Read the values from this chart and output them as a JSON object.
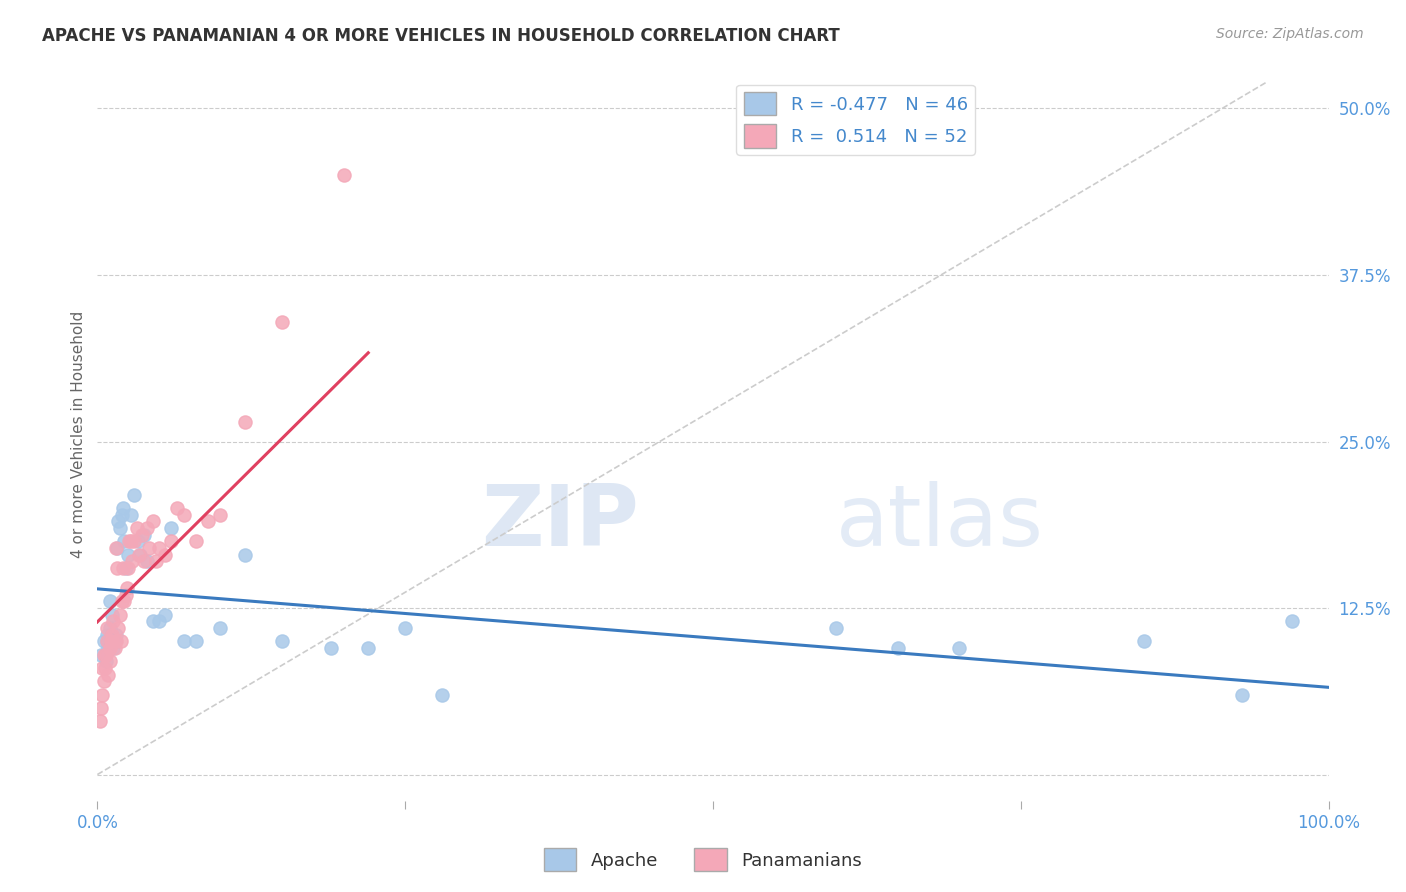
{
  "title": "APACHE VS PANAMANIAN 4 OR MORE VEHICLES IN HOUSEHOLD CORRELATION CHART",
  "source": "Source: ZipAtlas.com",
  "ylabel": "4 or more Vehicles in Household",
  "apache_R": -0.477,
  "apache_N": 46,
  "panamanian_R": 0.514,
  "panamanian_N": 52,
  "apache_color": "#a8c8e8",
  "panamanian_color": "#f4a8b8",
  "apache_line_color": "#3a7abf",
  "panamanian_line_color": "#e04060",
  "diagonal_color": "#cccccc",
  "xlim": [
    0,
    1.0
  ],
  "ylim": [
    -0.02,
    0.53
  ],
  "ytick_values": [
    0.0,
    0.125,
    0.25,
    0.375,
    0.5
  ],
  "apache_scatter_x": [
    0.003,
    0.005,
    0.007,
    0.008,
    0.008,
    0.009,
    0.01,
    0.01,
    0.011,
    0.012,
    0.013,
    0.014,
    0.015,
    0.016,
    0.017,
    0.018,
    0.02,
    0.021,
    0.022,
    0.023,
    0.025,
    0.027,
    0.03,
    0.033,
    0.035,
    0.038,
    0.04,
    0.045,
    0.05,
    0.055,
    0.06,
    0.07,
    0.08,
    0.1,
    0.12,
    0.15,
    0.19,
    0.22,
    0.25,
    0.28,
    0.6,
    0.65,
    0.7,
    0.85,
    0.93,
    0.97
  ],
  "apache_scatter_y": [
    0.09,
    0.1,
    0.085,
    0.1,
    0.105,
    0.095,
    0.13,
    0.11,
    0.105,
    0.12,
    0.095,
    0.1,
    0.105,
    0.17,
    0.19,
    0.185,
    0.195,
    0.2,
    0.175,
    0.155,
    0.165,
    0.195,
    0.21,
    0.175,
    0.165,
    0.18,
    0.16,
    0.115,
    0.115,
    0.12,
    0.185,
    0.1,
    0.1,
    0.11,
    0.165,
    0.1,
    0.095,
    0.095,
    0.11,
    0.06,
    0.11,
    0.095,
    0.095,
    0.1,
    0.06,
    0.115
  ],
  "panamanian_scatter_x": [
    0.002,
    0.003,
    0.004,
    0.004,
    0.005,
    0.005,
    0.006,
    0.007,
    0.008,
    0.008,
    0.009,
    0.01,
    0.01,
    0.011,
    0.012,
    0.013,
    0.014,
    0.015,
    0.015,
    0.016,
    0.017,
    0.018,
    0.019,
    0.02,
    0.021,
    0.022,
    0.023,
    0.024,
    0.025,
    0.026,
    0.027,
    0.028,
    0.03,
    0.032,
    0.034,
    0.036,
    0.038,
    0.04,
    0.042,
    0.045,
    0.048,
    0.05,
    0.055,
    0.06,
    0.065,
    0.07,
    0.08,
    0.09,
    0.1,
    0.12,
    0.15,
    0.2
  ],
  "panamanian_scatter_y": [
    0.04,
    0.05,
    0.06,
    0.08,
    0.07,
    0.09,
    0.08,
    0.09,
    0.1,
    0.11,
    0.075,
    0.085,
    0.095,
    0.1,
    0.105,
    0.115,
    0.095,
    0.1,
    0.17,
    0.155,
    0.11,
    0.12,
    0.1,
    0.13,
    0.155,
    0.13,
    0.135,
    0.14,
    0.155,
    0.175,
    0.175,
    0.16,
    0.175,
    0.185,
    0.165,
    0.18,
    0.16,
    0.185,
    0.17,
    0.19,
    0.16,
    0.17,
    0.165,
    0.175,
    0.2,
    0.195,
    0.175,
    0.19,
    0.195,
    0.265,
    0.34,
    0.45
  ]
}
